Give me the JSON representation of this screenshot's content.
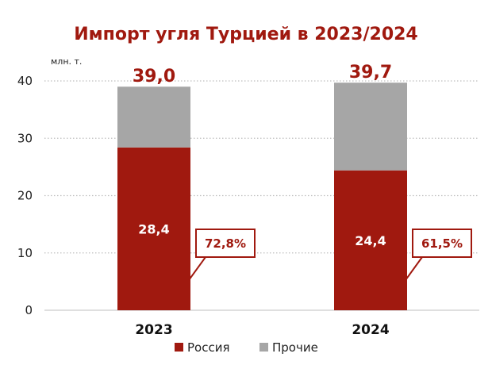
{
  "colors": {
    "russia": "#a0190f",
    "other": "#a6a6a6",
    "accent_text": "#a0190f",
    "grid": "#bfbfbf"
  },
  "chart_data": {
    "type": "bar",
    "stacked": true,
    "title": "Импорт угля Турцией в 2023/2024",
    "unit_label": "млн. т.",
    "categories": [
      "2023",
      "2024"
    ],
    "series": [
      {
        "name": "Россия",
        "values": [
          28.4,
          24.4
        ]
      },
      {
        "name": "Прочие",
        "values": [
          10.6,
          15.3
        ]
      }
    ],
    "data_labels": {
      "russia": [
        "28,4",
        "24,4"
      ],
      "totals": [
        "39,0",
        "39,7"
      ],
      "shares": [
        "72,8%",
        "61,5%"
      ]
    },
    "ylim": [
      0,
      40
    ],
    "yticks": [
      "0",
      "10",
      "20",
      "30",
      "40"
    ],
    "grid": true,
    "legend": "bottom"
  }
}
